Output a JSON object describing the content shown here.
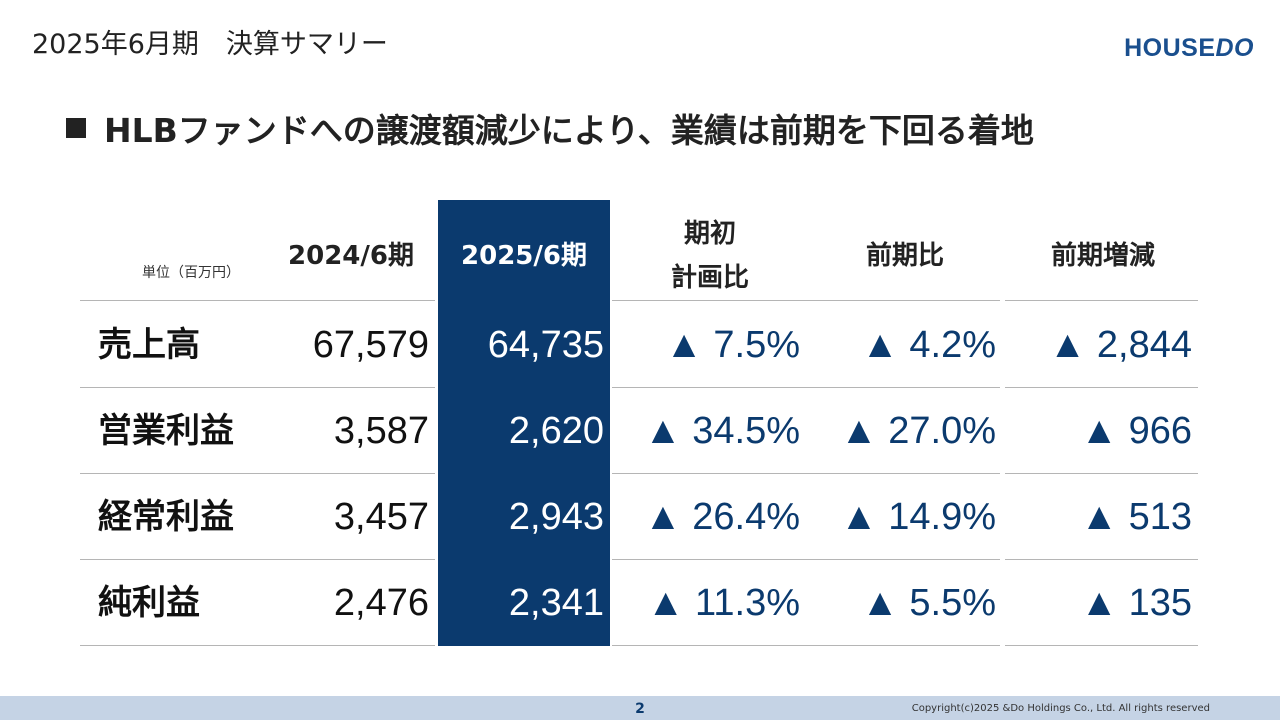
{
  "slide": {
    "title": "2025年6月期　決算サマリー",
    "logo_house": "HOUSE",
    "logo_do": "DO",
    "headline": "HLBファンドへの譲渡額減少により、業績は前期を下回る着地"
  },
  "table": {
    "unit": "単位（百万円）",
    "headers": {
      "prev": "2024/6期",
      "curr": "2025/6期",
      "plan_line1": "期初",
      "plan_line2": "計画比",
      "yoy": "前期比",
      "diff": "前期増減"
    },
    "rows": [
      {
        "label": "売上高",
        "prev": "67,579",
        "curr": "64,735",
        "plan": "▲ 7.5%",
        "yoy": "▲ 4.2%",
        "diff": "▲ 2,844"
      },
      {
        "label": "営業利益",
        "prev": "3,587",
        "curr": "2,620",
        "plan": "▲ 34.5%",
        "yoy": "▲ 27.0%",
        "diff": "▲ 966"
      },
      {
        "label": "経常利益",
        "prev": "3,457",
        "curr": "2,943",
        "plan": "▲ 26.4%",
        "yoy": "▲ 14.9%",
        "diff": "▲ 513"
      },
      {
        "label": "純利益",
        "prev": "2,476",
        "curr": "2,341",
        "plan": "▲ 11.3%",
        "yoy": "▲ 5.5%",
        "diff": "▲ 135"
      }
    ]
  },
  "footer": {
    "page": "2",
    "copyright": "Copyright(c)2025 &Do Holdings Co., Ltd. All rights reserved"
  }
}
